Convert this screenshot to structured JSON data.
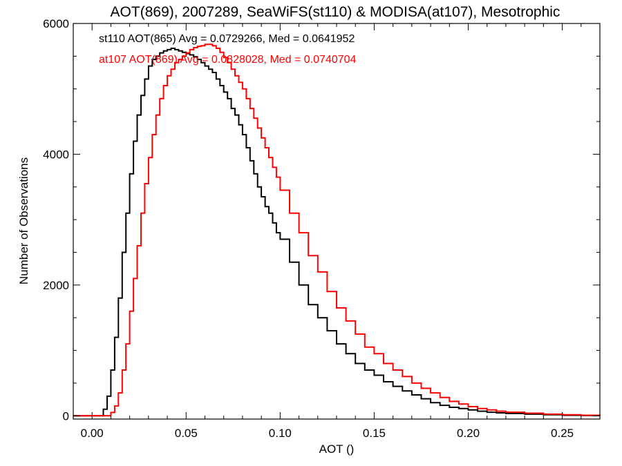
{
  "chart_data": {
    "type": "line",
    "title": "AOT(869), 2007289, SeaWiFS(st110) & MODISA(at107), Mesotrophic",
    "xlabel": "AOT ()",
    "ylabel": "Number of Observations",
    "xlim": [
      -0.01,
      0.27
    ],
    "ylim": [
      -50,
      6000
    ],
    "x_ticks": [
      {
        "value": 0.0,
        "label": "0.00"
      },
      {
        "value": 0.05,
        "label": "0.05"
      },
      {
        "value": 0.1,
        "label": "0.10"
      },
      {
        "value": 0.15,
        "label": "0.15"
      },
      {
        "value": 0.2,
        "label": "0.20"
      },
      {
        "value": 0.25,
        "label": "0.25"
      }
    ],
    "y_ticks": [
      {
        "value": 0,
        "label": "0"
      },
      {
        "value": 2000,
        "label": "2000"
      },
      {
        "value": 4000,
        "label": "4000"
      },
      {
        "value": 6000,
        "label": "6000"
      }
    ],
    "grid": false,
    "legend_position": "top-left",
    "series": [
      {
        "name": "st110",
        "legend_text": "st110 AOT(865) Avg = 0.0729266, Med = 0.0641952",
        "color": "#000000",
        "x": [
          -0.01,
          0.004,
          0.006,
          0.008,
          0.01,
          0.012,
          0.014,
          0.016,
          0.018,
          0.02,
          0.022,
          0.024,
          0.026,
          0.028,
          0.03,
          0.032,
          0.034,
          0.036,
          0.038,
          0.04,
          0.042,
          0.044,
          0.046,
          0.048,
          0.05,
          0.052,
          0.054,
          0.056,
          0.058,
          0.06,
          0.062,
          0.064,
          0.066,
          0.068,
          0.07,
          0.072,
          0.074,
          0.076,
          0.078,
          0.08,
          0.082,
          0.084,
          0.086,
          0.088,
          0.09,
          0.092,
          0.094,
          0.096,
          0.098,
          0.1,
          0.105,
          0.11,
          0.115,
          0.12,
          0.125,
          0.13,
          0.135,
          0.14,
          0.145,
          0.15,
          0.155,
          0.16,
          0.165,
          0.17,
          0.175,
          0.18,
          0.185,
          0.19,
          0.195,
          0.2,
          0.205,
          0.21,
          0.215,
          0.22,
          0.23,
          0.24,
          0.25,
          0.26,
          0.27
        ],
        "values": [
          0,
          0,
          100,
          300,
          700,
          1200,
          1800,
          2500,
          3100,
          3700,
          4200,
          4600,
          4900,
          5150,
          5350,
          5450,
          5500,
          5550,
          5580,
          5600,
          5620,
          5600,
          5580,
          5560,
          5540,
          5520,
          5490,
          5450,
          5400,
          5350,
          5300,
          5250,
          5150,
          5050,
          4950,
          4850,
          4700,
          4600,
          4450,
          4300,
          4100,
          3900,
          3700,
          3500,
          3350,
          3200,
          3100,
          2950,
          2800,
          2700,
          2350,
          2000,
          1700,
          1500,
          1300,
          1100,
          950,
          800,
          700,
          620,
          520,
          450,
          380,
          320,
          260,
          200,
          160,
          130,
          110,
          90,
          70,
          55,
          45,
          35,
          25,
          15,
          8,
          4,
          0
        ]
      },
      {
        "name": "at107",
        "legend_text": "at107 AOT(869) Avg = 0.0828028, Med = 0.0740704",
        "color": "#ff0000",
        "x": [
          -0.01,
          0.008,
          0.01,
          0.012,
          0.014,
          0.016,
          0.018,
          0.02,
          0.022,
          0.024,
          0.026,
          0.028,
          0.03,
          0.032,
          0.034,
          0.036,
          0.038,
          0.04,
          0.042,
          0.044,
          0.046,
          0.048,
          0.05,
          0.052,
          0.054,
          0.056,
          0.058,
          0.06,
          0.062,
          0.064,
          0.066,
          0.068,
          0.07,
          0.072,
          0.074,
          0.076,
          0.078,
          0.08,
          0.082,
          0.084,
          0.086,
          0.088,
          0.09,
          0.092,
          0.094,
          0.096,
          0.098,
          0.1,
          0.105,
          0.11,
          0.115,
          0.12,
          0.125,
          0.13,
          0.135,
          0.14,
          0.145,
          0.15,
          0.155,
          0.16,
          0.165,
          0.17,
          0.175,
          0.18,
          0.185,
          0.19,
          0.195,
          0.2,
          0.205,
          0.21,
          0.215,
          0.22,
          0.23,
          0.24,
          0.25,
          0.26,
          0.27
        ],
        "values": [
          0,
          0,
          50,
          150,
          350,
          700,
          1100,
          1600,
          2100,
          2600,
          3100,
          3550,
          3950,
          4300,
          4600,
          4850,
          5050,
          5200,
          5300,
          5400,
          5450,
          5500,
          5550,
          5600,
          5630,
          5650,
          5660,
          5680,
          5680,
          5660,
          5620,
          5560,
          5480,
          5400,
          5300,
          5200,
          5100,
          5000,
          4850,
          4700,
          4550,
          4400,
          4250,
          4100,
          3950,
          3800,
          3650,
          3450,
          3100,
          2800,
          2450,
          2200,
          1900,
          1650,
          1450,
          1250,
          1050,
          950,
          800,
          700,
          600,
          500,
          420,
          350,
          280,
          220,
          180,
          140,
          110,
          90,
          70,
          55,
          40,
          25,
          15,
          8,
          0
        ]
      }
    ]
  }
}
